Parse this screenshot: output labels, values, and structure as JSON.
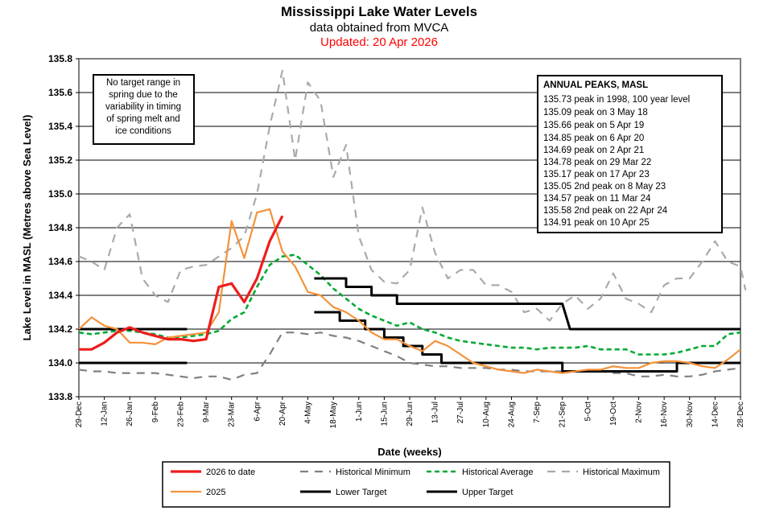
{
  "chart_data": {
    "type": "line",
    "title": "Mississippi Lake Water Levels",
    "subtitle": "data obtained from MVCA",
    "updated": "Updated:  20 Apr 2026",
    "xlabel": "Date (weeks)",
    "ylabel": "Lake Level in MASL  (Metres above Sea Level)",
    "ylim": [
      133.8,
      135.8
    ],
    "yticks": [
      "133.8",
      "134.0",
      "134.2",
      "134.4",
      "134.6",
      "134.8",
      "135.0",
      "135.2",
      "135.4",
      "135.6",
      "135.8"
    ],
    "xlim_weeks": [
      0,
      52
    ],
    "xticks": [
      "29-Dec",
      "12-Jan",
      "26-Jan",
      "9-Feb",
      "23-Feb",
      "9-Mar",
      "23-Mar",
      "6-Apr",
      "20-Apr",
      "4-May",
      "18-May",
      "1-Jun",
      "15-Jun",
      "29-Jun",
      "13-Jul",
      "27-Jul",
      "10-Aug",
      "24-Aug",
      "7-Sep",
      "21-Sep",
      "5-Oct",
      "19-Oct",
      "2-Nov",
      "16-Nov",
      "30-Nov",
      "14-Dec",
      "28-Dec"
    ],
    "grid": "horizontal",
    "note_lines": [
      "No target range in",
      "spring due to the",
      "variability in timing",
      "of spring melt and",
      "ice conditions"
    ],
    "peaks_title": "ANNUAL PEAKS, MASL",
    "peaks": [
      "135.73 peak in 1998, 100 year level",
      "135.09 peak on 3 May 18",
      "135.66 peak on 5 Apr 19",
      "134.85 peak on 6 Apr 20",
      "134.69 peak on 2 Apr 21",
      "134.78 peak on 29 Mar 22",
      "135.17 peak on 17 Apr 23",
      "135.05 2nd peak on 8 May 23",
      "134.57 peak on 11 Mar 24",
      "135.58 2nd peak on 22 Apr 24",
      "134.91 peak on 10 Apr 25"
    ],
    "series": [
      {
        "name": "Historical Maximum",
        "color": "#aaaaaa",
        "style": "dashed",
        "width": 2.2,
        "type": "line",
        "x": [
          0,
          1,
          2,
          3,
          4,
          5,
          6,
          7,
          8,
          9,
          10,
          11,
          12,
          13,
          14,
          15,
          16,
          17,
          18,
          19,
          20,
          21,
          22,
          23,
          24,
          25,
          26,
          27,
          28,
          29,
          30,
          31,
          32,
          33,
          34,
          35,
          36,
          37,
          38,
          39,
          40,
          41,
          42,
          43,
          44,
          45,
          46,
          47,
          48,
          49,
          50,
          51,
          52
        ],
        "values": [
          134.63,
          134.6,
          134.55,
          134.8,
          134.88,
          134.5,
          134.4,
          134.36,
          134.55,
          134.57,
          134.58,
          134.63,
          134.68,
          134.75,
          135.0,
          135.4,
          135.73,
          135.2,
          135.66,
          135.55,
          135.1,
          135.29,
          134.75,
          134.55,
          134.48,
          134.47,
          134.55,
          134.92,
          134.65,
          134.5,
          134.55,
          134.55,
          134.46,
          134.46,
          134.42,
          134.3,
          134.32,
          134.25,
          134.35,
          134.4,
          134.32,
          134.38,
          134.53,
          134.38,
          134.35,
          134.3,
          134.46,
          134.5,
          134.5,
          134.6,
          134.72,
          134.6,
          134.57
        ],
        "extra_x": [
          52.4
        ],
        "extra_values": [
          134.43
        ]
      },
      {
        "name": "Historical Minimum",
        "color": "#808080",
        "style": "dashed",
        "width": 2.2,
        "type": "line",
        "x": [
          0,
          1,
          2,
          3,
          4,
          5,
          6,
          7,
          8,
          9,
          10,
          11,
          12,
          13,
          14,
          15,
          16,
          17,
          18,
          19,
          20,
          21,
          22,
          23,
          24,
          25,
          26,
          27,
          28,
          29,
          30,
          31,
          32,
          33,
          34,
          35,
          36,
          37,
          38,
          39,
          40,
          41,
          42,
          43,
          44,
          45,
          46,
          47,
          48,
          49,
          50,
          51,
          52
        ],
        "values": [
          133.96,
          133.95,
          133.95,
          133.94,
          133.94,
          133.94,
          133.94,
          133.93,
          133.92,
          133.91,
          133.92,
          133.92,
          133.9,
          133.93,
          133.94,
          134.05,
          134.18,
          134.18,
          134.17,
          134.18,
          134.16,
          134.15,
          134.13,
          134.1,
          134.07,
          134.04,
          134.0,
          133.99,
          133.98,
          133.98,
          133.97,
          133.97,
          133.97,
          133.96,
          133.96,
          133.95,
          133.95,
          133.95,
          133.95,
          133.95,
          133.95,
          133.95,
          133.94,
          133.94,
          133.92,
          133.92,
          133.93,
          133.92,
          133.92,
          133.93,
          133.95,
          133.96,
          133.97
        ]
      },
      {
        "name": "Historical Average",
        "color": "#00aa33",
        "style": "dashed",
        "width": 2.6,
        "type": "line",
        "x": [
          0,
          1,
          2,
          3,
          4,
          5,
          6,
          7,
          8,
          9,
          10,
          11,
          12,
          13,
          14,
          15,
          16,
          17,
          18,
          19,
          20,
          21,
          22,
          23,
          24,
          25,
          26,
          27,
          28,
          29,
          30,
          31,
          32,
          33,
          34,
          35,
          36,
          37,
          38,
          39,
          40,
          41,
          42,
          43,
          44,
          45,
          46,
          47,
          48,
          49,
          50,
          51,
          52
        ],
        "values": [
          134.18,
          134.17,
          134.18,
          134.19,
          134.19,
          134.18,
          134.17,
          134.15,
          134.15,
          134.16,
          134.17,
          134.19,
          134.26,
          134.3,
          134.45,
          134.58,
          134.63,
          134.64,
          134.58,
          134.52,
          134.44,
          134.38,
          134.32,
          134.28,
          134.25,
          134.22,
          134.24,
          134.2,
          134.18,
          134.15,
          134.13,
          134.12,
          134.11,
          134.1,
          134.09,
          134.09,
          134.08,
          134.09,
          134.09,
          134.09,
          134.1,
          134.08,
          134.08,
          134.08,
          134.05,
          134.05,
          134.05,
          134.06,
          134.08,
          134.1,
          134.1,
          134.17,
          134.18
        ]
      },
      {
        "name": "Lower Target",
        "color": "#000000",
        "style": "solid",
        "width": 3,
        "type": "step",
        "segments": [
          {
            "x": [
              0,
              8.5
            ],
            "values": [
              134.0,
              134.0
            ]
          },
          {
            "x": [
              18.5,
              20.5,
              20.5,
              22.5,
              22.5,
              24,
              24,
              25.5,
              25.5,
              27,
              27,
              28.5,
              28.5,
              30,
              30,
              31.5,
              31.5,
              33,
              33,
              38,
              38,
              47,
              47,
              52
            ],
            "values": [
              134.3,
              134.3,
              134.25,
              134.25,
              134.2,
              134.2,
              134.15,
              134.15,
              134.1,
              134.1,
              134.05,
              134.05,
              134.0,
              134.0,
              134.0,
              134.0,
              134.0,
              134.0,
              134.0,
              134.0,
              133.95,
              133.95,
              134.0,
              134.0
            ]
          }
        ]
      },
      {
        "name": "Upper Target",
        "color": "#000000",
        "style": "solid",
        "width": 3,
        "type": "step",
        "segments": [
          {
            "x": [
              0,
              8.5
            ],
            "values": [
              134.2,
              134.2
            ]
          },
          {
            "x": [
              18.5,
              19.5,
              19.5,
              21,
              21,
              23,
              23,
              25,
              25,
              27.5,
              27.5,
              38,
              38.6,
              52
            ],
            "values": [
              134.5,
              134.5,
              134.5,
              134.5,
              134.45,
              134.45,
              134.4,
              134.4,
              134.35,
              134.35,
              134.35,
              134.35,
              134.2,
              134.2
            ]
          }
        ]
      },
      {
        "name": "2025",
        "color": "#f4923a",
        "style": "solid",
        "width": 2.2,
        "type": "line",
        "x": [
          0,
          1,
          2,
          3,
          4,
          5,
          6,
          7,
          8,
          9,
          10,
          11,
          12,
          13,
          14,
          15,
          16,
          17,
          18,
          19,
          20,
          21,
          22,
          23,
          24,
          25,
          26,
          27,
          28,
          29,
          30,
          31,
          32,
          33,
          34,
          35,
          36,
          37,
          38,
          39,
          40,
          41,
          42,
          43,
          44,
          45,
          46,
          47,
          48,
          49,
          50,
          51,
          52
        ],
        "values": [
          134.2,
          134.27,
          134.22,
          134.2,
          134.12,
          134.12,
          134.11,
          134.15,
          134.16,
          134.17,
          134.18,
          134.3,
          134.84,
          134.62,
          134.89,
          134.91,
          134.66,
          134.57,
          134.42,
          134.4,
          134.33,
          134.3,
          134.25,
          134.18,
          134.14,
          134.14,
          134.1,
          134.07,
          134.13,
          134.1,
          134.05,
          134.0,
          133.98,
          133.96,
          133.95,
          133.94,
          133.96,
          133.95,
          133.94,
          133.95,
          133.96,
          133.96,
          133.98,
          133.97,
          133.97,
          134.0,
          134.01,
          134.01,
          134.0,
          133.98,
          133.97,
          134.02,
          134.08
        ]
      },
      {
        "name": "2026 to date",
        "color": "#ee1c1c",
        "style": "solid",
        "width": 3.2,
        "type": "line",
        "x": [
          0,
          1,
          2,
          3,
          4,
          5,
          6,
          7,
          8,
          9,
          10,
          11,
          12,
          13,
          14,
          15,
          16
        ],
        "values": [
          134.08,
          134.08,
          134.12,
          134.18,
          134.21,
          134.18,
          134.16,
          134.14,
          134.14,
          134.13,
          134.14,
          134.45,
          134.47,
          134.36,
          134.5,
          134.72,
          134.87
        ]
      }
    ],
    "legend": [
      {
        "label": "2026 to date",
        "series": "2026 to date"
      },
      {
        "label": "Historical Minimum",
        "series": "Historical Minimum"
      },
      {
        "label": "Historical Average",
        "series": "Historical Average"
      },
      {
        "label": "Historical Maximum",
        "series": "Historical Maximum"
      },
      {
        "label": "2025",
        "series": "2025"
      },
      {
        "label": "Lower Target",
        "series": "Lower Target"
      },
      {
        "label": "Upper Target",
        "series": "Upper Target"
      }
    ]
  }
}
